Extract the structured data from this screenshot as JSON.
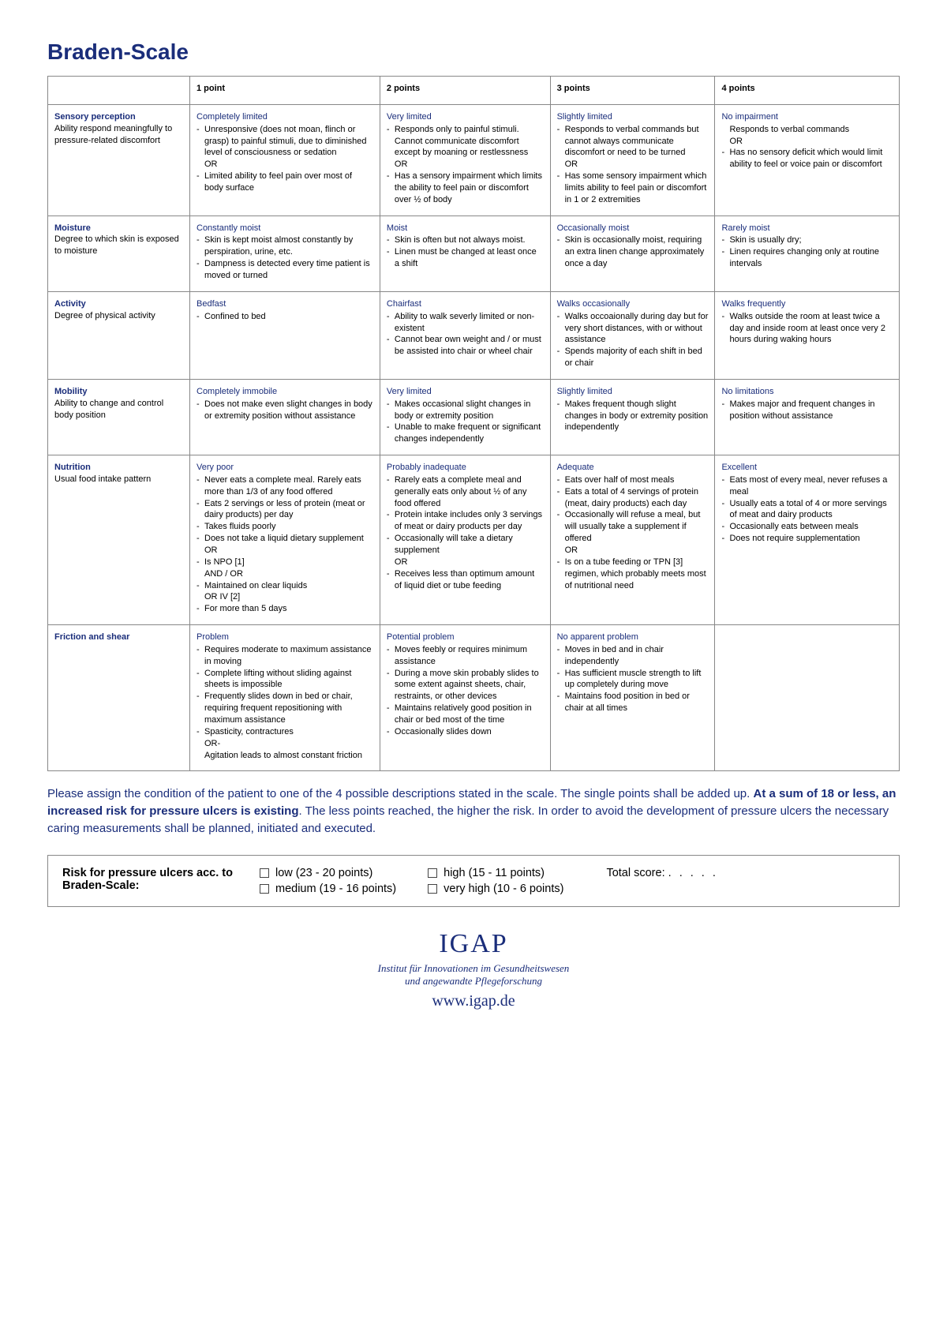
{
  "title": "Braden-Scale",
  "colors": {
    "primary": "#1a2d7a",
    "border": "#888888",
    "text": "#000000",
    "background": "#ffffff"
  },
  "font_sizes": {
    "title": 28,
    "table": 11,
    "instructions": 15,
    "risk_box": 14.5,
    "logo": 34,
    "org": 13,
    "website": 20
  },
  "columns": [
    "",
    "1 point",
    "2 points",
    "3 points",
    "4 points"
  ],
  "rows": [
    {
      "name": "Sensory perception",
      "desc": "Ability respond meaningfully to pressure-related discomfort",
      "cells": [
        {
          "heading": "Completely limited",
          "items": [
            {
              "t": "Unresponsive (does not moan, flinch or grasp) to painful stimuli, due to diminished level of consciousness or sedation",
              "b": true
            },
            {
              "t": "OR",
              "b": false
            },
            {
              "t": "Limited ability to feel pain over most of body surface",
              "b": true
            }
          ]
        },
        {
          "heading": "Very limited",
          "items": [
            {
              "t": "Responds only to painful stimuli. Cannot communicate discomfort except by moaning or restlessness",
              "b": true
            },
            {
              "t": "OR",
              "b": false
            },
            {
              "t": "Has a sensory impairment which limits the ability to feel pain or discomfort over ½ of body",
              "b": true
            }
          ]
        },
        {
          "heading": "Slightly limited",
          "items": [
            {
              "t": "Responds to verbal commands but cannot always communicate discomfort or need to be turned",
              "b": true
            },
            {
              "t": "OR",
              "b": false
            },
            {
              "t": "Has some sensory impairment which limits ability to feel pain or discomfort in 1 or 2 extremities",
              "b": true
            }
          ]
        },
        {
          "heading": "No impairment",
          "items": [
            {
              "t": "Responds to verbal commands",
              "b": false,
              "indent": true
            },
            {
              "t": "OR",
              "b": false
            },
            {
              "t": "Has no sensory deficit which would limit ability to feel or voice pain or discomfort",
              "b": true
            }
          ]
        }
      ]
    },
    {
      "name": "Moisture",
      "desc": "Degree to which skin is exposed to moisture",
      "cells": [
        {
          "heading": "Constantly moist",
          "items": [
            {
              "t": "Skin is kept moist almost constantly by perspiration, urine, etc.",
              "b": true
            },
            {
              "t": "Dampness is detected every time patient is moved or turned",
              "b": true
            }
          ]
        },
        {
          "heading": "Moist",
          "items": [
            {
              "t": "Skin is often but not always moist.",
              "b": true
            },
            {
              "t": "Linen must be changed at least once a shift",
              "b": true
            }
          ]
        },
        {
          "heading": "Occasionally moist",
          "items": [
            {
              "t": "Skin is occasionally moist, requiring an extra linen change approximately once a day",
              "b": true
            }
          ]
        },
        {
          "heading": "Rarely moist",
          "items": [
            {
              "t": "Skin is usually dry;",
              "b": true
            },
            {
              "t": "Linen requires changing only at routine intervals",
              "b": true
            }
          ]
        }
      ]
    },
    {
      "name": "Activity",
      "desc": "Degree of physical activity",
      "cells": [
        {
          "heading": "Bedfast",
          "items": [
            {
              "t": "Confined to bed",
              "b": true
            }
          ]
        },
        {
          "heading": "Chairfast",
          "items": [
            {
              "t": "Ability to walk severly limited or non-existent",
              "b": true
            },
            {
              "t": "Cannot bear own weight and / or must be assisted into chair or wheel chair",
              "b": true
            }
          ]
        },
        {
          "heading": "Walks occasionally",
          "items": [
            {
              "t": "Walks occoaionally during day but for very short distances, with or without assistance",
              "b": true
            },
            {
              "t": "Spends majority of each shift in bed or chair",
              "b": true
            }
          ]
        },
        {
          "heading": "Walks frequently",
          "items": [
            {
              "t": "Walks outside the room at least twice a day and inside room at least once very 2 hours during waking hours",
              "b": true
            }
          ]
        }
      ]
    },
    {
      "name": "Mobility",
      "desc": "Ability to change and control body position",
      "cells": [
        {
          "heading": "Completely immobile",
          "items": [
            {
              "t": "Does not make even slight changes in body or extremity position without assistance",
              "b": true
            }
          ]
        },
        {
          "heading": "Very limited",
          "items": [
            {
              "t": "Makes occasional slight changes in body or extremity position",
              "b": true
            },
            {
              "t": "Unable to make frequent or significant changes independently",
              "b": true
            }
          ]
        },
        {
          "heading": "Slightly limited",
          "items": [
            {
              "t": "Makes frequent though slight changes in body or extremity position independently",
              "b": true
            }
          ]
        },
        {
          "heading": "No limitations",
          "items": [
            {
              "t": "Makes major and frequent changes in position without assistance",
              "b": true
            }
          ]
        }
      ]
    },
    {
      "name": "Nutrition",
      "desc": "Usual food intake pattern",
      "cells": [
        {
          "heading": "Very poor",
          "items": [
            {
              "t": "Never eats a complete meal. Rarely eats more than 1/3 of any food offered",
              "b": true
            },
            {
              "t": "Eats 2 servings or less of protein (meat or dairy products) per day",
              "b": true
            },
            {
              "t": "Takes fluids poorly",
              "b": true
            },
            {
              "t": "Does not take a liquid dietary supplement",
              "b": true
            },
            {
              "t": "OR",
              "b": false
            },
            {
              "t": "Is NPO [1]",
              "b": true
            },
            {
              "t": "AND / OR",
              "b": false
            },
            {
              "t": "Maintained on clear liquids",
              "b": true
            },
            {
              "t": "OR IV [2]",
              "b": false
            },
            {
              "t": "For more than 5 days",
              "b": true
            }
          ]
        },
        {
          "heading": "Probably inadequate",
          "items": [
            {
              "t": "Rarely eats a complete meal and generally eats only about ½ of any food offered",
              "b": true
            },
            {
              "t": "Protein intake includes only 3 servings of meat or dairy products per day",
              "b": true
            },
            {
              "t": "Occasionally will take a dietary supplement",
              "b": true
            },
            {
              "t": "OR",
              "b": false
            },
            {
              "t": "Receives less than optimum amount of liquid diet or tube feeding",
              "b": true
            }
          ]
        },
        {
          "heading": "Adequate",
          "items": [
            {
              "t": "Eats over half of most meals",
              "b": true
            },
            {
              "t": "Eats a total of 4 servings of protein (meat, dairy products) each day",
              "b": true
            },
            {
              "t": "Occasionally will refuse a meal, but will usually take a supplement if offered",
              "b": true
            },
            {
              "t": "OR",
              "b": false
            },
            {
              "t": "Is on a tube feeding or TPN [3]  regimen, which probably meets most of nutritional need",
              "b": true
            }
          ]
        },
        {
          "heading": "Excellent",
          "items": [
            {
              "t": "Eats most of every meal, never refuses a meal",
              "b": true
            },
            {
              "t": "Usually eats a total of 4 or more servings of meat and dairy products",
              "b": true
            },
            {
              "t": "Occasionally eats between meals",
              "b": true
            },
            {
              "t": "Does not require supplementation",
              "b": true
            }
          ]
        }
      ]
    },
    {
      "name": "Friction and shear",
      "desc": "",
      "cells": [
        {
          "heading": "Problem",
          "items": [
            {
              "t": "Requires moderate to maximum assistance in moving",
              "b": true
            },
            {
              "t": "Complete lifting without sliding against sheets is impossible",
              "b": true
            },
            {
              "t": "Frequently slides down in bed or chair, requiring frequent repositioning with maximum assistance",
              "b": true
            },
            {
              "t": "Spasticity, contractures",
              "b": true
            },
            {
              "t": "OR-",
              "b": false
            },
            {
              "t": "Agitation leads to almost constant friction",
              "b": false,
              "indent": true
            }
          ]
        },
        {
          "heading": "Potential problem",
          "items": [
            {
              "t": "Moves feebly or requires minimum assistance",
              "b": true
            },
            {
              "t": "During a move skin probably slides to some extent against sheets, chair, restraints, or other devices",
              "b": true
            },
            {
              "t": "Maintains relatively good position in chair or bed most of the time",
              "b": true
            },
            {
              "t": "Occasionally slides down",
              "b": true
            }
          ]
        },
        {
          "heading": "No apparent problem",
          "items": [
            {
              "t": "Moves in bed and in chair independently",
              "b": true
            },
            {
              "t": "Has sufficient muscle strength to lift up completely during move",
              "b": true
            },
            {
              "t": "Maintains food position in bed or chair at all times",
              "b": true
            }
          ]
        },
        {
          "heading": "",
          "items": []
        }
      ]
    }
  ],
  "instructions": {
    "pre": "Please assign the condition of the patient to one of the 4 possible descriptions stated in the scale. The single points shall be added up. ",
    "bold": "At a sum of 18 or less, an increased risk for pressure ulcers is existing",
    "post": ". The less points reached, the higher the risk. In order to avoid the development of pressure ulcers the necessary caring measurements shall be planned, initiated and executed."
  },
  "risk": {
    "label": "Risk for pressure ulcers acc. to Braden-Scale:",
    "options": [
      "low (23 - 20 points)",
      "high (15 - 11 points)",
      "medium (19 - 16 points)",
      "very high (10 - 6 points)"
    ],
    "total_label": "Total score:",
    "dots": ". . . . ."
  },
  "footer": {
    "logo": "IGAP",
    "org1": "Institut für Innovationen im Gesundheitswesen",
    "org2": "und angewandte Pflegeforschung",
    "website": "www.igap.de"
  }
}
